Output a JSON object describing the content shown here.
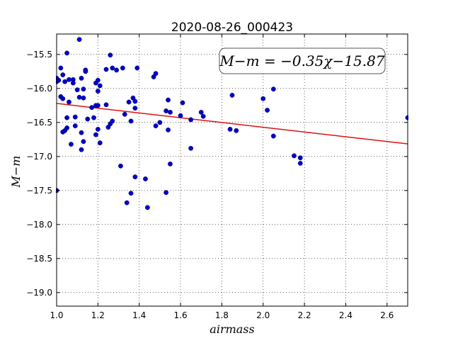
{
  "chart_data": {
    "type": "scatter",
    "title": "2020-08-26_000423",
    "xlabel": "airmass",
    "ylabel": "M−m",
    "xlim": [
      1.0,
      2.7
    ],
    "ylim": [
      -19.2,
      -15.2
    ],
    "y_inverted": true,
    "grid": true,
    "grid_style": "dotted",
    "x_ticks": [
      1.0,
      1.2,
      1.4,
      1.6,
      1.8,
      2.0,
      2.2,
      2.4,
      2.6
    ],
    "x_tick_labels": [
      "1.0",
      "1.2",
      "1.4",
      "1.6",
      "1.8",
      "2.0",
      "2.2",
      "2.4",
      "2.6"
    ],
    "y_ticks": [
      -15.5,
      -16.0,
      -16.5,
      -17.0,
      -17.5,
      -18.0,
      -18.5,
      -19.0
    ],
    "y_tick_labels": [
      "−15.5",
      "−16.0",
      "−16.5",
      "−17.0",
      "−17.5",
      "−18.0",
      "−18.5",
      "−19.0"
    ],
    "annotation": "M−m = −0.35χ−15.87",
    "fit": {
      "slope": -0.35,
      "intercept": -15.87,
      "color": "#e01010"
    },
    "marker_color": "#0000cc",
    "points": [
      [
        1.0,
        -15.85
      ],
      [
        1.0,
        -15.9
      ],
      [
        1.0,
        -17.5
      ],
      [
        1.01,
        -15.88
      ],
      [
        1.02,
        -16.12
      ],
      [
        1.02,
        -15.7
      ],
      [
        1.03,
        -15.8
      ],
      [
        1.03,
        -16.15
      ],
      [
        1.03,
        -16.64
      ],
      [
        1.04,
        -16.62
      ],
      [
        1.04,
        -15.9
      ],
      [
        1.05,
        -15.48
      ],
      [
        1.05,
        -16.43
      ],
      [
        1.05,
        -16.58
      ],
      [
        1.06,
        -15.87
      ],
      [
        1.06,
        -16.2
      ],
      [
        1.07,
        -16.82
      ],
      [
        1.08,
        -15.87
      ],
      [
        1.08,
        -15.92
      ],
      [
        1.09,
        -16.42
      ],
      [
        1.09,
        -16.55
      ],
      [
        1.1,
        -16.02
      ],
      [
        1.11,
        -15.28
      ],
      [
        1.11,
        -16.13
      ],
      [
        1.12,
        -16.65
      ],
      [
        1.12,
        -15.85
      ],
      [
        1.12,
        -16.9
      ],
      [
        1.13,
        -16.14
      ],
      [
        1.13,
        -16.01
      ],
      [
        1.13,
        -16.78
      ],
      [
        1.14,
        -15.75
      ],
      [
        1.14,
        -15.73
      ],
      [
        1.15,
        -16.45
      ],
      [
        1.17,
        -16.28
      ],
      [
        1.18,
        -16.43
      ],
      [
        1.19,
        -16.25
      ],
      [
        1.19,
        -15.92
      ],
      [
        1.2,
        -15.88
      ],
      [
        1.19,
        -16.68
      ],
      [
        1.2,
        -16.04
      ],
      [
        1.2,
        -16.6
      ],
      [
        1.2,
        -16.25
      ],
      [
        1.21,
        -15.96
      ],
      [
        1.21,
        -16.8
      ],
      [
        1.24,
        -16.24
      ],
      [
        1.24,
        -15.72
      ],
      [
        1.25,
        -16.57
      ],
      [
        1.26,
        -15.51
      ],
      [
        1.26,
        -16.52
      ],
      [
        1.27,
        -16.48
      ],
      [
        1.27,
        -15.7
      ],
      [
        1.29,
        -15.73
      ],
      [
        1.31,
        -17.14
      ],
      [
        1.32,
        -15.7
      ],
      [
        1.33,
        -16.38
      ],
      [
        1.34,
        -17.68
      ],
      [
        1.35,
        -16.2
      ],
      [
        1.36,
        -16.48
      ],
      [
        1.36,
        -17.54
      ],
      [
        1.37,
        -16.14
      ],
      [
        1.38,
        -16.19
      ],
      [
        1.38,
        -16.29
      ],
      [
        1.38,
        -17.3
      ],
      [
        1.39,
        -15.7
      ],
      [
        1.43,
        -17.33
      ],
      [
        1.44,
        -17.75
      ],
      [
        1.47,
        -15.83
      ],
      [
        1.48,
        -15.78
      ],
      [
        1.48,
        -16.55
      ],
      [
        1.5,
        -16.5
      ],
      [
        1.53,
        -16.33
      ],
      [
        1.53,
        -17.53
      ],
      [
        1.54,
        -16.17
      ],
      [
        1.54,
        -16.61
      ],
      [
        1.55,
        -16.35
      ],
      [
        1.55,
        -17.11
      ],
      [
        1.6,
        -16.4
      ],
      [
        1.61,
        -16.21
      ],
      [
        1.65,
        -16.46
      ],
      [
        1.65,
        -16.88
      ],
      [
        1.7,
        -16.35
      ],
      [
        1.71,
        -16.41
      ],
      [
        1.84,
        -16.6
      ],
      [
        1.85,
        -16.1
      ],
      [
        1.87,
        -16.62
      ],
      [
        2.0,
        -16.15
      ],
      [
        2.02,
        -16.32
      ],
      [
        2.05,
        -16.01
      ],
      [
        2.05,
        -16.7
      ],
      [
        2.15,
        -16.99
      ],
      [
        2.18,
        -17.02
      ],
      [
        2.18,
        -17.1
      ],
      [
        2.7,
        -16.43
      ]
    ]
  }
}
